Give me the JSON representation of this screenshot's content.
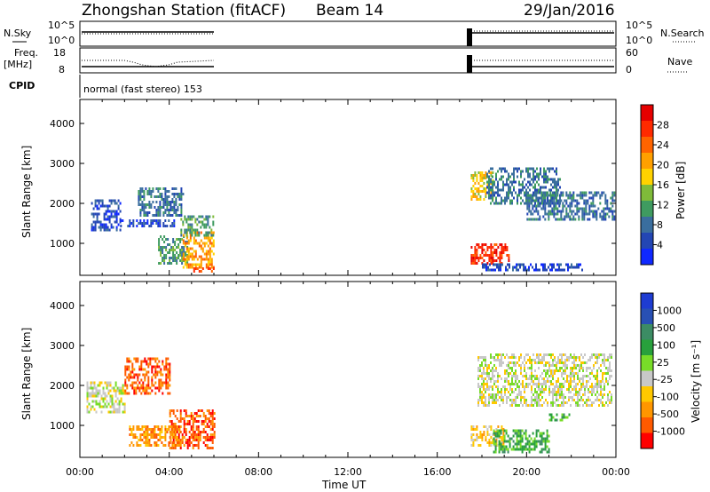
{
  "header": {
    "station": "Zhongshan Station (fitACF)",
    "beam": "Beam 14",
    "date": "29/Jan/2016"
  },
  "panels": {
    "nsky_label": "N.Sky",
    "nsky_ticks": [
      "10^5",
      "10^0"
    ],
    "nsearch_label": "N.Search",
    "nsearch_ticks": [
      "10^5",
      "10^0"
    ],
    "freq_label": "Freq.",
    "freq_unit": "[MHz]",
    "freq_ticks": [
      "18",
      "8"
    ],
    "nave_label": "Nave",
    "nave_ticks": [
      "60",
      "0"
    ],
    "cpid_label": "CPID",
    "cpid_text": "normal (fast stereo) 153"
  },
  "colors": {
    "power": [
      "#0f28ff",
      "#2346b4",
      "#3a6e9e",
      "#3f9b60",
      "#7fbb3a",
      "#ffd200",
      "#ffa000",
      "#ff6400",
      "#ff2a00",
      "#e60000"
    ],
    "velocity": [
      "#ff0000",
      "#ff5a00",
      "#ff9600",
      "#ffc800",
      "#c8c8c8",
      "#78dc28",
      "#28a03c",
      "#3c8c64",
      "#2850b4",
      "#1e3cd2"
    ]
  },
  "chart_data": [
    {
      "type": "heatmap",
      "panel": "power",
      "ylabel": "Slant Range [km]",
      "xlabel": "Time UT",
      "x_ticks": [
        "00:00",
        "04:00",
        "08:00",
        "12:00",
        "16:00",
        "20:00",
        "00:00"
      ],
      "xlim_hours": [
        0,
        24
      ],
      "y_ticks": [
        1000,
        2000,
        3000,
        4000
      ],
      "ylim": [
        200,
        4600
      ],
      "colorbar_label": "Power [dB]",
      "colorbar_ticks": [
        "28",
        "24",
        "20",
        "16",
        "12",
        "8",
        "4"
      ],
      "regions": [
        {
          "t": [
            0.5,
            1.8
          ],
          "r": [
            1300,
            2100
          ],
          "level": 1
        },
        {
          "t": [
            1.8,
            4.2
          ],
          "r": [
            1400,
            1600
          ],
          "level": 1
        },
        {
          "t": [
            2.6,
            4.6
          ],
          "r": [
            1700,
            2400
          ],
          "level": 2
        },
        {
          "t": [
            3.5,
            4.8
          ],
          "r": [
            500,
            1200
          ],
          "level": 3
        },
        {
          "t": [
            4.6,
            6.0
          ],
          "r": [
            400,
            1300
          ],
          "level": 6
        },
        {
          "t": [
            4.5,
            6.0
          ],
          "r": [
            1200,
            1700
          ],
          "level": 3
        },
        {
          "t": [
            5.0,
            6.0
          ],
          "r": [
            300,
            400
          ],
          "level": 8
        },
        {
          "t": [
            17.5,
            19.2
          ],
          "r": [
            500,
            1000
          ],
          "level": 8
        },
        {
          "t": [
            17.5,
            18.5
          ],
          "r": [
            2100,
            2800
          ],
          "level": 5
        },
        {
          "t": [
            18.2,
            21.5
          ],
          "r": [
            2000,
            2900
          ],
          "level": 2
        },
        {
          "t": [
            20.0,
            23.9
          ],
          "r": [
            1600,
            2300
          ],
          "level": 2
        },
        {
          "t": [
            18.0,
            22.5
          ],
          "r": [
            300,
            500
          ],
          "level": 1
        }
      ]
    },
    {
      "type": "heatmap",
      "panel": "velocity",
      "ylabel": "Slant Range [km]",
      "xlabel": "Time UT",
      "x_ticks": [
        "00:00",
        "04:00",
        "08:00",
        "12:00",
        "16:00",
        "20:00",
        "00:00"
      ],
      "xlim_hours": [
        0,
        24
      ],
      "y_ticks": [
        1000,
        2000,
        3000,
        4000
      ],
      "ylim": [
        200,
        4600
      ],
      "colorbar_label": "Velocity [m s⁻¹]",
      "colorbar_ticks": [
        "1000",
        "500",
        "100",
        "25",
        "-25",
        "-100",
        "-500",
        "-1000"
      ],
      "regions": [
        {
          "t": [
            0.3,
            2.0
          ],
          "r": [
            1300,
            2100
          ],
          "level": 4
        },
        {
          "t": [
            2.0,
            4.0
          ],
          "r": [
            1800,
            2700
          ],
          "level": 1
        },
        {
          "t": [
            2.2,
            4.5
          ],
          "r": [
            500,
            1000
          ],
          "level": 2
        },
        {
          "t": [
            4.0,
            6.0
          ],
          "r": [
            400,
            1400
          ],
          "level": 1
        },
        {
          "t": [
            17.5,
            19.0
          ],
          "r": [
            500,
            1000
          ],
          "level": 3
        },
        {
          "t": [
            18.5,
            21.0
          ],
          "r": [
            300,
            900
          ],
          "level": 6
        },
        {
          "t": [
            17.8,
            23.8
          ],
          "r": [
            1500,
            2800
          ],
          "level": 4
        },
        {
          "t": [
            21.0,
            22.0
          ],
          "r": [
            1100,
            1300
          ],
          "level": 6
        }
      ]
    }
  ]
}
